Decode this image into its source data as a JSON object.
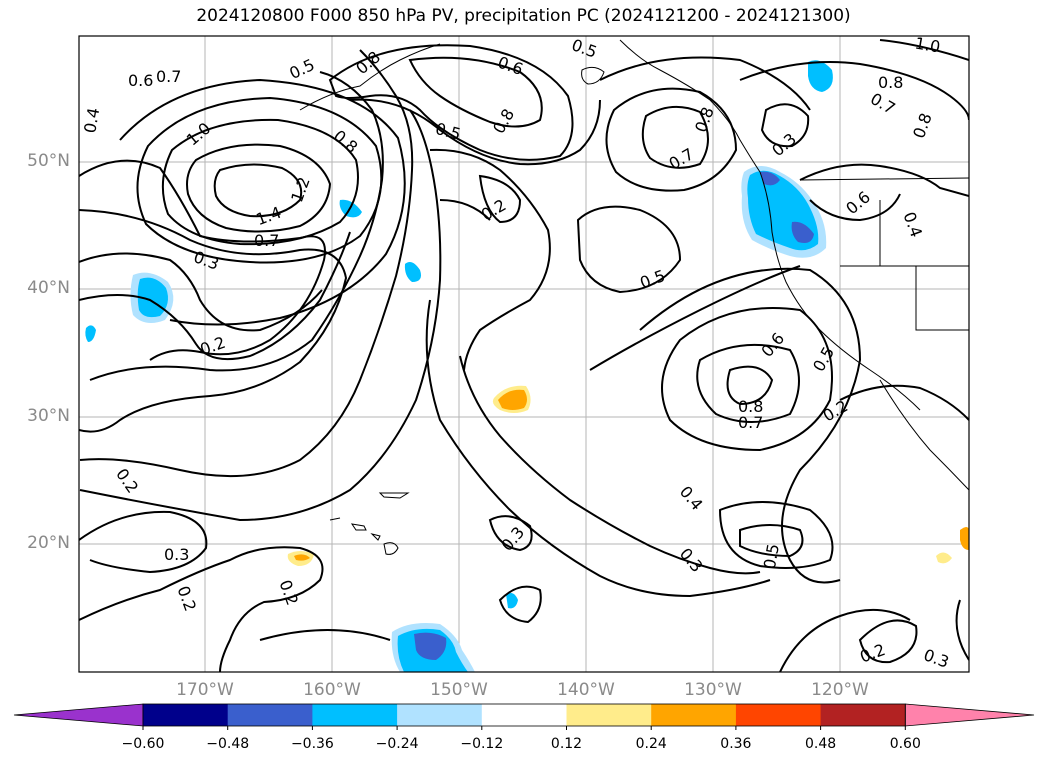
{
  "title": "2024120800 F000 850 hPa PV, precipitation PC (2024121200 - 2024121300)",
  "lat_labels": [
    "50°N",
    "40°N",
    "30°N",
    "20°N"
  ],
  "lon_labels": [
    "170°W",
    "160°W",
    "150°W",
    "140°W",
    "130°W",
    "120°W"
  ],
  "contour_labels": [
    "0.6",
    "0.7",
    "0.4",
    "1.0",
    "1.4",
    "1.2",
    "0.7",
    "0.3",
    "0.2",
    "0.5",
    "0.8",
    "0.8",
    "0.5",
    "0.2",
    "0.6",
    "0.8",
    "0.5",
    "0.7",
    "0.8",
    "0.3",
    "1.0",
    "0.8",
    "0.7",
    "0.8",
    "0.6",
    "0.4",
    "0.5",
    "0.6",
    "0.5",
    "0.8",
    "0.7",
    "0.2",
    "0.4",
    "0.3",
    "0.5",
    "0.3",
    "0.2",
    "0.3",
    "0.2",
    "0.2",
    "0.2",
    "0.3"
  ],
  "colorbar": {
    "colors": [
      "#9a32cd",
      "#00008b",
      "#3a5fcd",
      "#00bfff",
      "#b0e2ff",
      "#ffffff",
      "#ffec8b",
      "#ffa500",
      "#ff4500",
      "#b22222",
      "#ff82ab"
    ],
    "tick_labels": [
      "−0.60",
      "−0.48",
      "−0.36",
      "−0.24",
      "−0.12",
      "0.12",
      "0.24",
      "0.36",
      "0.48",
      "0.60"
    ]
  }
}
